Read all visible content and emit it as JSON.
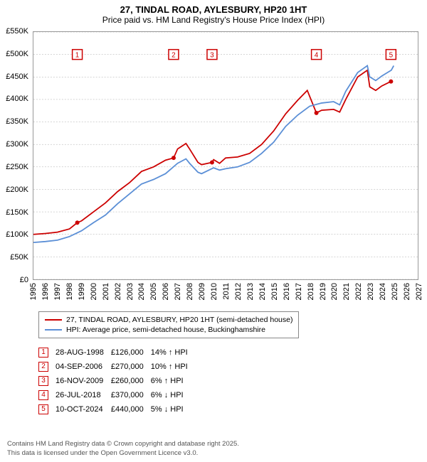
{
  "title": "27, TINDAL ROAD, AYLESBURY, HP20 1HT",
  "subtitle": "Price paid vs. HM Land Registry's House Price Index (HPI)",
  "chart": {
    "type": "line",
    "background_color": "#ffffff",
    "grid_color": "#aaaaaa",
    "axis_color": "#999999",
    "xlim": [
      1995,
      2027
    ],
    "ylim": [
      0,
      550000
    ],
    "ytick_step": 50000,
    "yticks": [
      "£0",
      "£50K",
      "£100K",
      "£150K",
      "£200K",
      "£250K",
      "£300K",
      "£350K",
      "£400K",
      "£450K",
      "£500K",
      "£550K"
    ],
    "xticks": [
      1995,
      1996,
      1997,
      1998,
      1999,
      2000,
      2001,
      2002,
      2003,
      2004,
      2005,
      2006,
      2007,
      2008,
      2009,
      2010,
      2011,
      2012,
      2013,
      2014,
      2015,
      2016,
      2017,
      2018,
      2019,
      2020,
      2021,
      2022,
      2023,
      2024,
      2025,
      2026,
      2027
    ],
    "title_fontsize": 13,
    "label_fontsize": 11,
    "series": [
      {
        "name": "27, TINDAL ROAD, AYLESBURY, HP20 1HT (semi-detached house)",
        "color": "#cc0000",
        "line_width": 1.8,
        "data": [
          [
            1995,
            100000
          ],
          [
            1996,
            102000
          ],
          [
            1997,
            105000
          ],
          [
            1998,
            112000
          ],
          [
            1998.65,
            126000
          ],
          [
            1999,
            130000
          ],
          [
            2000,
            150000
          ],
          [
            2001,
            170000
          ],
          [
            2002,
            195000
          ],
          [
            2003,
            215000
          ],
          [
            2004,
            240000
          ],
          [
            2005,
            250000
          ],
          [
            2006,
            265000
          ],
          [
            2006.67,
            270000
          ],
          [
            2007,
            290000
          ],
          [
            2007.7,
            302000
          ],
          [
            2008,
            290000
          ],
          [
            2008.7,
            260000
          ],
          [
            2009,
            255000
          ],
          [
            2009.87,
            260000
          ],
          [
            2010,
            266000
          ],
          [
            2010.5,
            258000
          ],
          [
            2011,
            270000
          ],
          [
            2012,
            272000
          ],
          [
            2013,
            280000
          ],
          [
            2014,
            300000
          ],
          [
            2015,
            330000
          ],
          [
            2016,
            368000
          ],
          [
            2017,
            398000
          ],
          [
            2017.8,
            420000
          ],
          [
            2018.56,
            370000
          ],
          [
            2019,
            376000
          ],
          [
            2020,
            378000
          ],
          [
            2020.5,
            372000
          ],
          [
            2021,
            400000
          ],
          [
            2022,
            450000
          ],
          [
            2022.8,
            465000
          ],
          [
            2023,
            428000
          ],
          [
            2023.5,
            420000
          ],
          [
            2024,
            430000
          ],
          [
            2024.77,
            440000
          ]
        ]
      },
      {
        "name": "HPI: Average price, semi-detached house, Buckinghamshire",
        "color": "#5b8fd6",
        "line_width": 1.6,
        "data": [
          [
            1995,
            82000
          ],
          [
            1996,
            84000
          ],
          [
            1997,
            87000
          ],
          [
            1998,
            95000
          ],
          [
            1999,
            108000
          ],
          [
            2000,
            126000
          ],
          [
            2001,
            143000
          ],
          [
            2002,
            168000
          ],
          [
            2003,
            190000
          ],
          [
            2004,
            212000
          ],
          [
            2005,
            222000
          ],
          [
            2006,
            235000
          ],
          [
            2007,
            258000
          ],
          [
            2007.7,
            268000
          ],
          [
            2008,
            258000
          ],
          [
            2008.7,
            238000
          ],
          [
            2009,
            235000
          ],
          [
            2010,
            248000
          ],
          [
            2010.5,
            243000
          ],
          [
            2011,
            246000
          ],
          [
            2012,
            250000
          ],
          [
            2013,
            260000
          ],
          [
            2014,
            280000
          ],
          [
            2015,
            305000
          ],
          [
            2016,
            340000
          ],
          [
            2017,
            365000
          ],
          [
            2018,
            385000
          ],
          [
            2019,
            392000
          ],
          [
            2020,
            395000
          ],
          [
            2020.5,
            388000
          ],
          [
            2021,
            418000
          ],
          [
            2022,
            460000
          ],
          [
            2022.8,
            475000
          ],
          [
            2023,
            450000
          ],
          [
            2023.5,
            442000
          ],
          [
            2024,
            452000
          ],
          [
            2024.8,
            465000
          ],
          [
            2025,
            475000
          ]
        ]
      }
    ],
    "transaction_markers": [
      {
        "n": "1",
        "x": 1998.65,
        "y": 126000,
        "marker_y": 500000
      },
      {
        "n": "2",
        "x": 2006.67,
        "y": 270000,
        "marker_y": 500000
      },
      {
        "n": "3",
        "x": 2009.87,
        "y": 260000,
        "marker_y": 500000
      },
      {
        "n": "4",
        "x": 2018.56,
        "y": 370000,
        "marker_y": 500000
      },
      {
        "n": "5",
        "x": 2024.77,
        "y": 440000,
        "marker_y": 500000
      }
    ],
    "marker_box_color": "#cc0000",
    "dot_color": "#cc0000",
    "dot_radius": 3
  },
  "legend": {
    "items": [
      {
        "color": "#cc0000",
        "label": "27, TINDAL ROAD, AYLESBURY, HP20 1HT (semi-detached house)"
      },
      {
        "color": "#5b8fd6",
        "label": "HPI: Average price, semi-detached house, Buckinghamshire"
      }
    ]
  },
  "transactions": [
    {
      "n": "1",
      "date": "28-AUG-1998",
      "price": "£126,000",
      "diff": "14% ↑ HPI"
    },
    {
      "n": "2",
      "date": "04-SEP-2006",
      "price": "£270,000",
      "diff": "10% ↑ HPI"
    },
    {
      "n": "3",
      "date": "16-NOV-2009",
      "price": "£260,000",
      "diff": "6% ↑ HPI"
    },
    {
      "n": "4",
      "date": "26-JUL-2018",
      "price": "£370,000",
      "diff": "6% ↓ HPI"
    },
    {
      "n": "5",
      "date": "10-OCT-2024",
      "price": "£440,000",
      "diff": "5% ↓ HPI"
    }
  ],
  "footnote_line1": "Contains HM Land Registry data © Crown copyright and database right 2025.",
  "footnote_line2": "This data is licensed under the Open Government Licence v3.0."
}
